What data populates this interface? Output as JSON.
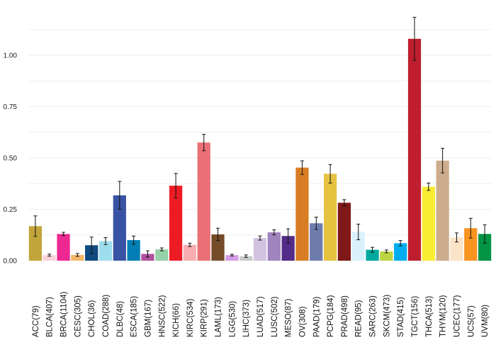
{
  "chart_data": {
    "type": "bar",
    "title": "",
    "xlabel": "",
    "ylabel": "",
    "ylim": [
      0,
      1.2
    ],
    "yticks": [
      0.0,
      0.25,
      0.5,
      0.75,
      1.0
    ],
    "ytick_labels": [
      "0.00",
      "0.25",
      "0.50",
      "0.75",
      "1.00"
    ],
    "grid": true,
    "bars": [
      {
        "label": "ACC(79)",
        "value": 0.168,
        "err": 0.05,
        "color": "#c1a53a"
      },
      {
        "label": "BLCA(407)",
        "value": 0.027,
        "err": 0.005,
        "color": "#fad2d9"
      },
      {
        "label": "BRCA(1104)",
        "value": 0.13,
        "err": 0.008,
        "color": "#ed2891"
      },
      {
        "label": "CESC(305)",
        "value": 0.028,
        "err": 0.007,
        "color": "#f6b667"
      },
      {
        "label": "CHOL(36)",
        "value": 0.075,
        "err": 0.04,
        "color": "#104a7f"
      },
      {
        "label": "COAD(288)",
        "value": 0.095,
        "err": 0.017,
        "color": "#9edded"
      },
      {
        "label": "DLBC(48)",
        "value": 0.318,
        "err": 0.068,
        "color": "#3953a4"
      },
      {
        "label": "ESCA(185)",
        "value": 0.1,
        "err": 0.02,
        "color": "#007eb5"
      },
      {
        "label": "GBM(167)",
        "value": 0.033,
        "err": 0.015,
        "color": "#b2509e"
      },
      {
        "label": "HNSC(522)",
        "value": 0.055,
        "err": 0.007,
        "color": "#97d1a9"
      },
      {
        "label": "KICH(66)",
        "value": 0.365,
        "err": 0.06,
        "color": "#ed1c24"
      },
      {
        "label": "KIRC(534)",
        "value": 0.077,
        "err": 0.008,
        "color": "#f8aeb0"
      },
      {
        "label": "KIRP(291)",
        "value": 0.575,
        "err": 0.04,
        "color": "#ea7075"
      },
      {
        "label": "LAML(173)",
        "value": 0.128,
        "err": 0.03,
        "color": "#754c29"
      },
      {
        "label": "LGG(530)",
        "value": 0.027,
        "err": 0.004,
        "color": "#d49de7"
      },
      {
        "label": "LIHC(373)",
        "value": 0.022,
        "err": 0.006,
        "color": "#cacccc"
      },
      {
        "label": "LUAD(517)",
        "value": 0.11,
        "err": 0.01,
        "color": "#d3c3e0"
      },
      {
        "label": "LUSC(502)",
        "value": 0.138,
        "err": 0.012,
        "color": "#a084bd"
      },
      {
        "label": "MESO(87)",
        "value": 0.12,
        "err": 0.035,
        "color": "#542c88"
      },
      {
        "label": "OV(308)",
        "value": 0.453,
        "err": 0.033,
        "color": "#d97d25"
      },
      {
        "label": "PAAD(179)",
        "value": 0.182,
        "err": 0.03,
        "color": "#6e7bad"
      },
      {
        "label": "PCPG(184)",
        "value": 0.423,
        "err": 0.045,
        "color": "#e6c241"
      },
      {
        "label": "PRAD(498)",
        "value": 0.282,
        "err": 0.015,
        "color": "#7e1918"
      },
      {
        "label": "READ(95)",
        "value": 0.14,
        "err": 0.038,
        "color": "#daf1fc"
      },
      {
        "label": "SARC(263)",
        "value": 0.053,
        "err": 0.012,
        "color": "#00a99d"
      },
      {
        "label": "SKCM(473)",
        "value": 0.045,
        "err": 0.007,
        "color": "#bbd642"
      },
      {
        "label": "STAD(415)",
        "value": 0.085,
        "err": 0.013,
        "color": "#00aeef"
      },
      {
        "label": "TGCT(156)",
        "value": 1.08,
        "err": 0.105,
        "color": "#be1e2d"
      },
      {
        "label": "THCA(513)",
        "value": 0.36,
        "err": 0.018,
        "color": "#f9ed32"
      },
      {
        "label": "THYM(120)",
        "value": 0.487,
        "err": 0.06,
        "color": "#cead8e"
      },
      {
        "label": "UCEC(177)",
        "value": 0.113,
        "err": 0.022,
        "color": "#fbe3c7"
      },
      {
        "label": "UCS(57)",
        "value": 0.158,
        "err": 0.048,
        "color": "#f89420"
      },
      {
        "label": "UVM(80)",
        "value": 0.13,
        "err": 0.045,
        "color": "#009444"
      }
    ]
  }
}
